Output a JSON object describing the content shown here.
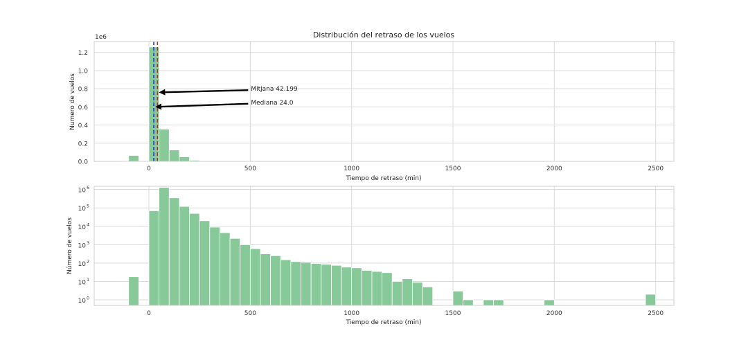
{
  "colors": {
    "bar": "#88c999",
    "grid": "#d9d9d9",
    "spine": "#cfcfcf",
    "mean_line": "#cc2222",
    "median_line": "#1f3fbf",
    "arrow": "#000000"
  },
  "chart_data": [
    {
      "type": "bar",
      "title": "Distribución del retraso de los vuelos",
      "xlabel": "Tiempo de retraso (min)",
      "ylabel": "Numero de vuelos",
      "yscale_label": "1e6",
      "yscale": "linear",
      "xlim": [
        -270,
        2590
      ],
      "ylim": [
        0,
        1.32
      ],
      "xticks": [
        0,
        500,
        1000,
        1500,
        2000,
        2500
      ],
      "xtick_labels": [
        "0",
        "500",
        "1000",
        "1500",
        "2000",
        "2500"
      ],
      "yticks": [
        0,
        0.2,
        0.4,
        0.6,
        0.8,
        1.0,
        1.2
      ],
      "ytick_labels": [
        "0.0",
        "0.2",
        "0.4",
        "0.6",
        "0.8",
        "1.0",
        "1.2"
      ],
      "grid": true,
      "bins": [
        {
          "x0": -100,
          "x1": -50,
          "value": 0.065
        },
        {
          "x0": -50,
          "x1": 0,
          "value": 0.0
        },
        {
          "x0": 0,
          "x1": 50,
          "value": 1.26
        },
        {
          "x0": 50,
          "x1": 100,
          "value": 0.355
        },
        {
          "x0": 100,
          "x1": 150,
          "value": 0.125
        },
        {
          "x0": 150,
          "x1": 200,
          "value": 0.05
        },
        {
          "x0": 200,
          "x1": 250,
          "value": 0.012
        },
        {
          "x0": 250,
          "x1": 300,
          "value": 0.005
        }
      ],
      "vlines": [
        {
          "name": "median",
          "x": 24.0,
          "style": "dashed"
        },
        {
          "name": "mean",
          "x": 42.199,
          "style": "dashed"
        }
      ],
      "annotations": [
        {
          "text": "Mitjana 42.199",
          "text_x": 500,
          "text_y": 0.8,
          "arrow_x": 42.199,
          "arrow_y": 0.76
        },
        {
          "text": "Mediana 24.0",
          "text_x": 500,
          "text_y": 0.65,
          "arrow_x": 24.0,
          "arrow_y": 0.6
        }
      ]
    },
    {
      "type": "bar",
      "title": "",
      "xlabel": "Tiempo de retraso (min)",
      "ylabel": "Número de vuelos",
      "yscale": "log",
      "xlim": [
        -270,
        2590
      ],
      "ylim": [
        0.5,
        1500000
      ],
      "xticks": [
        0,
        500,
        1000,
        1500,
        2000,
        2500
      ],
      "xtick_labels": [
        "0",
        "500",
        "1000",
        "1500",
        "2000",
        "2500"
      ],
      "yticks": [
        1,
        10,
        100,
        1000,
        10000,
        100000,
        1000000
      ],
      "ytick_labels": [
        {
          "base": "10",
          "exp": "0"
        },
        {
          "base": "10",
          "exp": "1"
        },
        {
          "base": "10",
          "exp": "2"
        },
        {
          "base": "10",
          "exp": "3"
        },
        {
          "base": "10",
          "exp": "4"
        },
        {
          "base": "10",
          "exp": "5"
        },
        {
          "base": "10",
          "exp": "6"
        }
      ],
      "grid": true,
      "bin_start": -100,
      "bin_width": 50,
      "values": [
        18,
        0,
        70000,
        1300000,
        350000,
        120000,
        50000,
        20000,
        9000,
        4500,
        2200,
        1000,
        600,
        320,
        250,
        150,
        120,
        110,
        95,
        85,
        75,
        60,
        55,
        40,
        35,
        30,
        10,
        14,
        9,
        5,
        0,
        0,
        3,
        1,
        0,
        1,
        1,
        0,
        0,
        0,
        0,
        1,
        0,
        0,
        0,
        0,
        0,
        0,
        0,
        0,
        0,
        2
      ]
    }
  ]
}
